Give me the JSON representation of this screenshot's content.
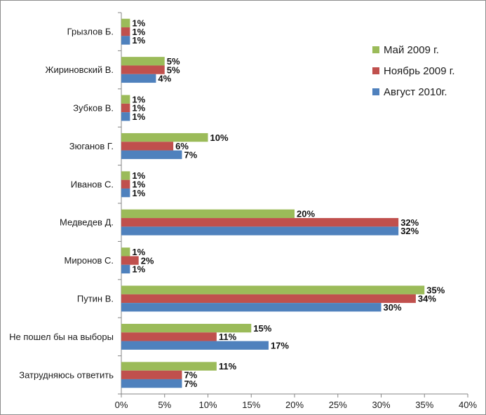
{
  "chart_data": {
    "type": "bar",
    "orientation": "horizontal",
    "categories": [
      "Грызлов Б.",
      "Жириновский  В.",
      "Зубков В.",
      "Зюганов Г.",
      "Иванов С.",
      "Медведев Д.",
      "Миронов С.",
      "Путин В.",
      "Не пошел  бы на выборы",
      "Затрудняюсь ответить"
    ],
    "series": [
      {
        "name": "Май 2009 г.",
        "color": "#9bbb59",
        "values": [
          1,
          5,
          1,
          10,
          1,
          20,
          1,
          35,
          15,
          11
        ]
      },
      {
        "name": "Ноябрь 2009 г.",
        "color": "#c0504d",
        "values": [
          1,
          5,
          1,
          6,
          1,
          32,
          2,
          34,
          11,
          7
        ]
      },
      {
        "name": "Август 2010г.",
        "color": "#4f81bd",
        "values": [
          1,
          4,
          1,
          7,
          1,
          32,
          1,
          30,
          17,
          7
        ]
      }
    ],
    "x_ticks": [
      "0%",
      "5%",
      "10%",
      "15%",
      "20%",
      "25%",
      "30%",
      "35%",
      "40%"
    ],
    "xlim": [
      0,
      40
    ],
    "unit": "%",
    "grid": false,
    "legend_position": "top-right"
  }
}
